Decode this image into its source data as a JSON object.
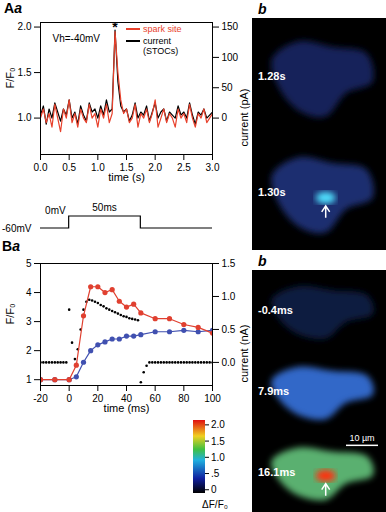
{
  "chart_data": [
    {
      "type": "line",
      "panel": "Aa",
      "x_label": "time (s)",
      "y_label": "F/F₀",
      "y2_label": "current (pA)",
      "annotations": [
        {
          "text": "Vh=-40mV"
        },
        {
          "text": "*",
          "x": 1.3,
          "y": 1.97
        }
      ],
      "xlim": [
        0,
        3
      ],
      "xticks": [
        {
          "value": 0,
          "label": "0.0"
        },
        {
          "value": 0.5,
          "label": "0.5"
        },
        {
          "value": 1,
          "label": "1.0"
        },
        {
          "value": 1.5,
          "label": "1.5"
        },
        {
          "value": 2,
          "label": "2.0"
        },
        {
          "value": 2.5,
          "label": "2.5"
        },
        {
          "value": 3,
          "label": "3.0"
        }
      ],
      "ylim": [
        0.6,
        2.05
      ],
      "yticks": [
        {
          "value": 1,
          "label": "1.0"
        },
        {
          "value": 1.5,
          "label": "1.5"
        },
        {
          "value": 2,
          "label": "2.0"
        }
      ],
      "y2lim": [
        -60,
        157.5
      ],
      "y2ticks": [
        0,
        50,
        100,
        150
      ],
      "legend": "top-right",
      "x": [
        0,
        0.05,
        0.1,
        0.15,
        0.2,
        0.25,
        0.3,
        0.35,
        0.4,
        0.45,
        0.5,
        0.55,
        0.6,
        0.65,
        0.7,
        0.75,
        0.8,
        0.85,
        0.9,
        0.95,
        1,
        1.05,
        1.1,
        1.15,
        1.2,
        1.25,
        1.3,
        1.35,
        1.4,
        1.45,
        1.5,
        1.55,
        1.6,
        1.65,
        1.7,
        1.75,
        1.8,
        1.85,
        1.9,
        1.95,
        2,
        2.05,
        2.1,
        2.15,
        2.2,
        2.25,
        2.3,
        2.35,
        2.4,
        2.45,
        2.5,
        2.55,
        2.6,
        2.65,
        2.7,
        2.75,
        2.8,
        2.85,
        2.9,
        2.95,
        3
      ],
      "series": [
        {
          "name": "spark site",
          "color": "#e8412c",
          "values": [
            1.0,
            1.1,
            0.95,
            1.05,
            0.9,
            1.15,
            1.0,
            0.85,
            1.1,
            1.0,
            1.2,
            0.95,
            1.05,
            0.9,
            1.1,
            1.0,
            0.95,
            1.15,
            1.0,
            1.05,
            0.9,
            1.1,
            1.0,
            1.15,
            0.95,
            1.05,
            1.95,
            1.5,
            1.2,
            1.05,
            1.1,
            0.95,
            1.0,
            1.15,
            0.9,
            1.05,
            1.0,
            1.1,
            0.95,
            1.05,
            1.2,
            0.9,
            1.0,
            1.1,
            0.95,
            1.05,
            1.0,
            0.9,
            1.1,
            1.0,
            1.05,
            0.95,
            1.15,
            1.0,
            0.9,
            1.05,
            1.0,
            1.1,
            0.95,
            1.0,
            1.05
          ]
        },
        {
          "name": "current (STOCs)",
          "color": "#000000",
          "axis": "y2",
          "values": [
            5,
            20,
            -10,
            15,
            0,
            25,
            10,
            -5,
            15,
            5,
            30,
            0,
            10,
            -10,
            20,
            5,
            -5,
            25,
            10,
            15,
            0,
            20,
            5,
            30,
            10,
            15,
            145,
            60,
            20,
            10,
            15,
            -5,
            5,
            25,
            0,
            10,
            5,
            20,
            -5,
            10,
            25,
            0,
            10,
            15,
            -5,
            10,
            5,
            0,
            20,
            5,
            10,
            0,
            25,
            5,
            -10,
            10,
            5,
            15,
            0,
            5,
            10
          ]
        }
      ]
    },
    {
      "type": "line",
      "panel": "Ba",
      "x_label": "time (ms)",
      "y_label": "F/F₀",
      "y2_label": "current (nA)",
      "protocol": {
        "holding_label": "-60mV",
        "step_label": "0mV",
        "duration_label": "50ms",
        "start": 0,
        "end": 50
      },
      "xlim": [
        -20,
        100
      ],
      "xticks": [
        -20,
        0,
        20,
        40,
        60,
        80,
        100
      ],
      "ylim": [
        0.8,
        5
      ],
      "yticks": [
        1,
        2,
        3,
        4,
        5
      ],
      "y2lim": [
        -0.35,
        1.5
      ],
      "y2ticks": [
        {
          "value": 0,
          "label": "0.0"
        },
        {
          "value": 0.5,
          "label": "0.5"
        },
        {
          "value": 1,
          "label": "1.0"
        },
        {
          "value": 1.5,
          "label": "1.5"
        }
      ],
      "series": [
        {
          "color": "#e04030",
          "marker": "circle",
          "line_style": "solid",
          "x": [
            -20,
            -10,
            0,
            5,
            10,
            15,
            20,
            25,
            30,
            35,
            40,
            45,
            50,
            60,
            70,
            80,
            90,
            100
          ],
          "values": [
            1,
            1,
            1,
            1.5,
            3.2,
            4.2,
            4.2,
            4.0,
            4.1,
            3.7,
            3.5,
            3.6,
            3.3,
            3.1,
            3.1,
            2.9,
            2.8,
            2.6
          ]
        },
        {
          "color": "#4050b0",
          "marker": "circle",
          "line_style": "solid",
          "x": [
            -20,
            -10,
            0,
            5,
            10,
            15,
            20,
            25,
            30,
            35,
            40,
            45,
            50,
            60,
            70,
            80,
            90,
            100
          ],
          "values": [
            1,
            1,
            1,
            1.1,
            1.6,
            2.0,
            2.2,
            2.3,
            2.4,
            2.4,
            2.5,
            2.5,
            2.55,
            2.65,
            2.65,
            2.7,
            2.65,
            2.7
          ]
        },
        {
          "type": "scatter",
          "color": "#000000",
          "marker": "dot",
          "axis": "y2",
          "x": [
            -20,
            -18,
            -16,
            -14,
            -12,
            -10,
            -8,
            -6,
            -4,
            -2,
            0,
            2,
            4,
            6,
            8,
            10,
            12,
            14,
            16,
            18,
            20,
            22,
            24,
            26,
            28,
            30,
            32,
            34,
            36,
            38,
            40,
            42,
            44,
            46,
            48,
            50,
            52,
            54,
            56,
            58,
            60,
            62,
            64,
            66,
            68,
            70,
            72,
            74,
            76,
            78,
            80,
            82,
            84,
            86,
            88,
            90,
            92,
            94,
            96,
            98,
            100
          ],
          "values": [
            0,
            0,
            0,
            0,
            0,
            0,
            0,
            0,
            0,
            0,
            0.8,
            0.3,
            0.05,
            0.2,
            0.5,
            0.8,
            0.92,
            0.95,
            0.94,
            0.92,
            0.9,
            0.87,
            0.85,
            0.82,
            0.8,
            0.78,
            0.76,
            0.74,
            0.72,
            0.7,
            0.69,
            0.67,
            0.66,
            0.65,
            0.64,
            -0.3,
            -0.15,
            -0.05,
            0,
            0,
            0,
            0,
            0,
            0,
            0,
            0,
            0,
            0,
            0,
            0,
            0,
            0,
            0,
            0,
            0,
            0,
            0,
            0,
            0,
            0,
            0
          ]
        }
      ]
    }
  ],
  "image_panels": [
    {
      "label": "b",
      "frames": [
        {
          "time": "1.28s"
        },
        {
          "time": "1.30s",
          "arrow": true
        }
      ]
    },
    {
      "label": "b",
      "frames": [
        {
          "time": "-0.4ms"
        },
        {
          "time": "7.9ms"
        },
        {
          "time": "16.1ms",
          "arrow": true
        }
      ],
      "scale_bar": "10 µm",
      "colorbar": {
        "label": "ΔF/F₀",
        "range": [
          -0.1,
          2.15
        ],
        "ticks": [
          {
            "value": 0,
            "label": "0"
          },
          {
            "value": 0.5,
            "label": ".5"
          },
          {
            "value": 1,
            "label": "1.0"
          },
          {
            "value": 1.5,
            "label": "1.5"
          },
          {
            "value": 2,
            "label": "2.0"
          }
        ]
      }
    }
  ]
}
